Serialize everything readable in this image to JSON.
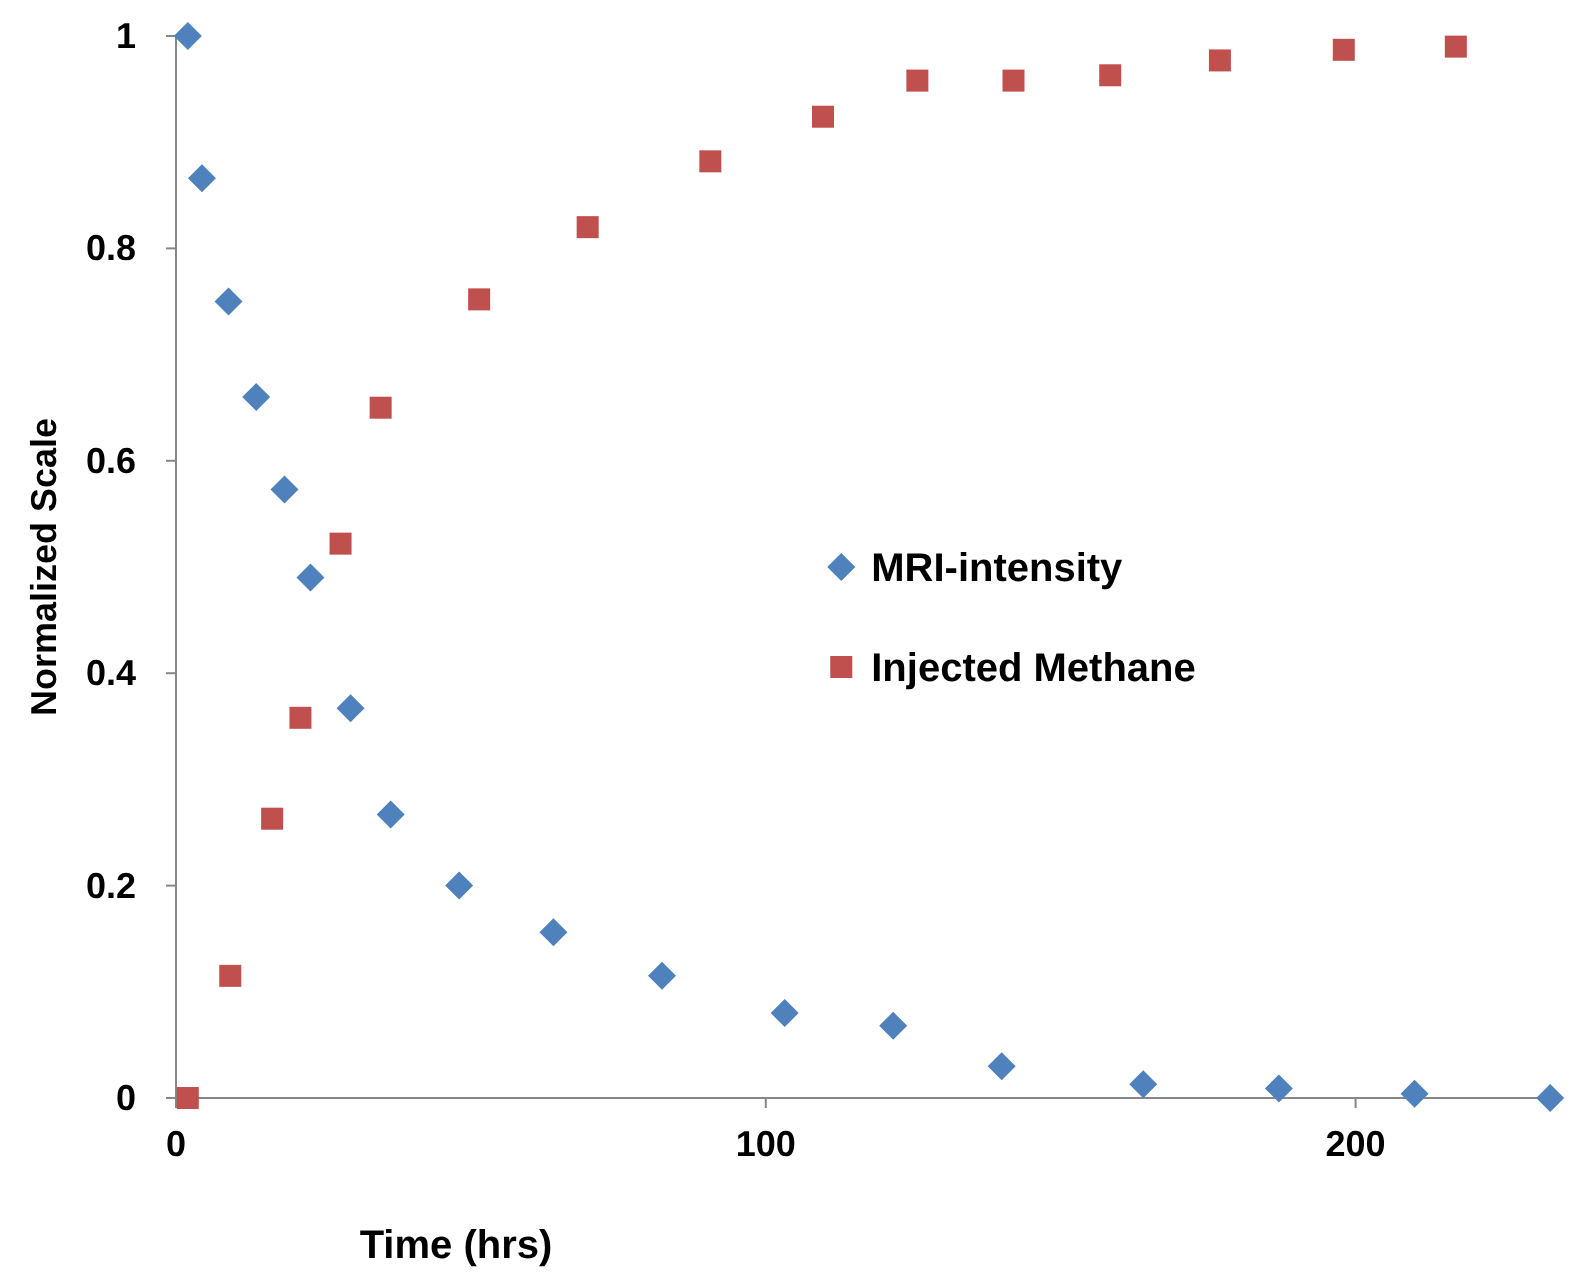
{
  "chart_data": {
    "type": "scatter",
    "xlabel": "Time (hrs)",
    "ylabel": "Normalized Scale",
    "xlim": [
      0,
      235
    ],
    "xticks": [
      0,
      100,
      200
    ],
    "ylim": [
      0,
      1
    ],
    "yticks": [
      0,
      0.2,
      0.4,
      0.6,
      0.8,
      1
    ],
    "grid": false,
    "legend": "right",
    "series": [
      {
        "name": "MRI-intensity",
        "color": "#4f81bd",
        "marker": "diamond",
        "x": [
          2,
          4.4,
          8.9,
          13.6,
          18.4,
          22.8,
          29.6,
          36.4,
          48,
          64,
          82.4,
          103.2,
          121.6,
          140,
          164,
          187,
          210,
          233
        ],
        "values": [
          1,
          0.866,
          0.75,
          0.66,
          0.573,
          0.49,
          0.367,
          0.267,
          0.2,
          0.156,
          0.115,
          0.08,
          0.068,
          0.03,
          0.013,
          0.009,
          0.004,
          0
        ]
      },
      {
        "name": "Injected Methane",
        "color": "#c0504d",
        "marker": "square",
        "x": [
          2,
          9.2,
          16.3,
          21.1,
          27.9,
          34.7,
          51.4,
          69.8,
          90.6,
          109.7,
          125.7,
          142,
          158.4,
          177,
          198,
          217
        ],
        "values": [
          0,
          0.115,
          0.263,
          0.358,
          0.522,
          0.65,
          0.752,
          0.82,
          0.882,
          0.924,
          0.958,
          0.958,
          0.963,
          0.977,
          0.987,
          0.99
        ]
      }
    ]
  }
}
